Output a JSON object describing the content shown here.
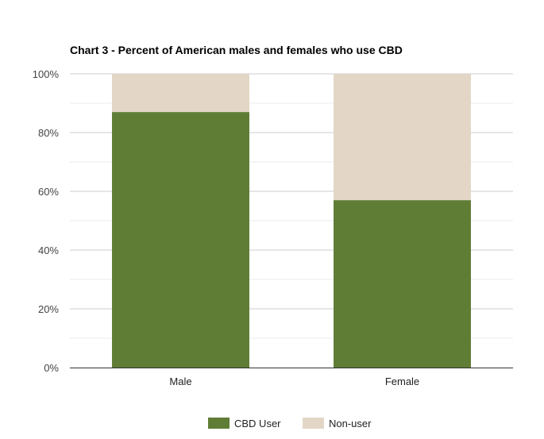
{
  "chart_data": {
    "type": "bar",
    "stacked": true,
    "title": "Chart 3 - Percent of American males and females who use CBD",
    "xlabel": "",
    "ylabel": "",
    "categories": [
      "Male",
      "Female"
    ],
    "series": [
      {
        "name": "CBD User",
        "values": [
          87,
          57
        ],
        "color": "#607d36"
      },
      {
        "name": "Non-user",
        "values": [
          13,
          43
        ],
        "color": "#e3d6c6"
      }
    ],
    "ylim": [
      0,
      100
    ],
    "yticks": [
      0,
      20,
      40,
      60,
      80,
      100
    ],
    "ytick_labels": [
      "0%",
      "20%",
      "40%",
      "60%",
      "80%",
      "100%"
    ],
    "grid": true,
    "legend": "bottom"
  }
}
